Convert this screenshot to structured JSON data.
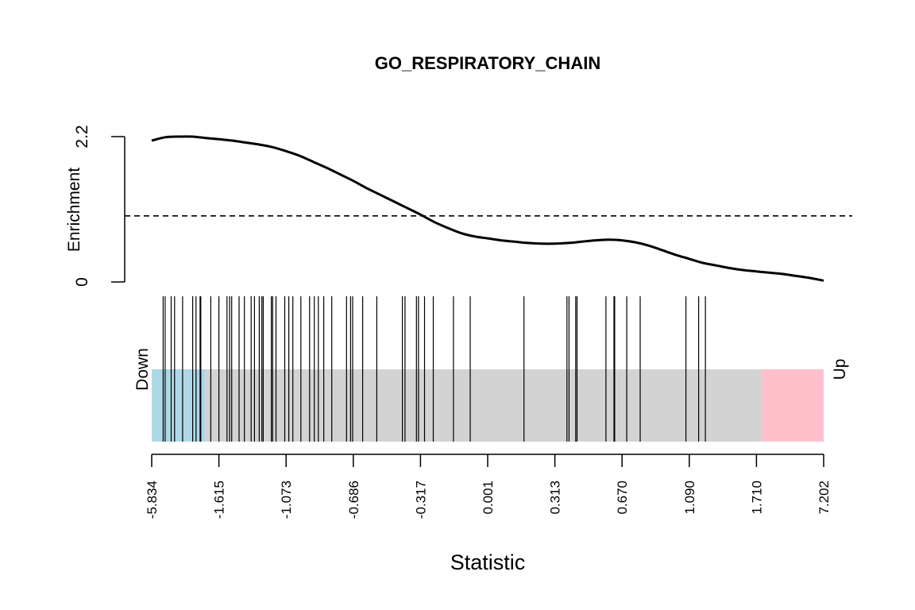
{
  "chart_data": {
    "type": "line",
    "title": "GO_RESPIRATORY_CHAIN",
    "xlabel": "Statistic",
    "ylabel": "Enrichment",
    "y_ticks": [
      "0",
      "2.2"
    ],
    "ylim": [
      0,
      2.2
    ],
    "reference_line": 1.0,
    "x_tick_labels": [
      "-5.834",
      "-1.615",
      "-1.073",
      "-0.686",
      "-0.317",
      "0.001",
      "0.313",
      "0.670",
      "1.090",
      "1.710",
      "7.202"
    ],
    "barcode_labels": {
      "down": "Down",
      "up": "Up"
    },
    "x": [
      0,
      0.02,
      0.04,
      0.06,
      0.08,
      0.1,
      0.12,
      0.14,
      0.16,
      0.18,
      0.2,
      0.22,
      0.24,
      0.26,
      0.28,
      0.3,
      0.32,
      0.34,
      0.36,
      0.38,
      0.4,
      0.42,
      0.44,
      0.46,
      0.48,
      0.5,
      0.52,
      0.54,
      0.56,
      0.58,
      0.6,
      0.62,
      0.64,
      0.66,
      0.68,
      0.7,
      0.72,
      0.74,
      0.76,
      0.78,
      0.8,
      0.82,
      0.84,
      0.86,
      0.88,
      0.9,
      0.92,
      0.94,
      0.96,
      0.98,
      1.0
    ],
    "y": [
      2.14,
      2.19,
      2.2,
      2.2,
      2.18,
      2.16,
      2.14,
      2.11,
      2.08,
      2.04,
      1.98,
      1.91,
      1.82,
      1.73,
      1.63,
      1.53,
      1.42,
      1.32,
      1.22,
      1.12,
      1.02,
      0.91,
      0.82,
      0.74,
      0.69,
      0.66,
      0.63,
      0.61,
      0.59,
      0.58,
      0.58,
      0.59,
      0.61,
      0.63,
      0.64,
      0.63,
      0.6,
      0.55,
      0.48,
      0.41,
      0.35,
      0.29,
      0.25,
      0.21,
      0.18,
      0.16,
      0.14,
      0.12,
      0.09,
      0.06,
      0.02
    ],
    "gene_positions": [
      0.017,
      0.02,
      0.029,
      0.034,
      0.046,
      0.061,
      0.066,
      0.072,
      0.073,
      0.088,
      0.1,
      0.112,
      0.116,
      0.119,
      0.13,
      0.138,
      0.148,
      0.153,
      0.16,
      0.164,
      0.166,
      0.178,
      0.18,
      0.185,
      0.198,
      0.204,
      0.21,
      0.222,
      0.235,
      0.242,
      0.248,
      0.256,
      0.268,
      0.29,
      0.296,
      0.299,
      0.314,
      0.335,
      0.373,
      0.377,
      0.394,
      0.397,
      0.406,
      0.419,
      0.449,
      0.474,
      0.554,
      0.618,
      0.621,
      0.631,
      0.633,
      0.676,
      0.688,
      0.689,
      0.707,
      0.727,
      0.795,
      0.814,
      0.824
    ],
    "colors": {
      "line": "#000000",
      "barcode_background": "#d3d3d3",
      "down_region": "#add8e6",
      "up_region": "#ffc0cb"
    }
  }
}
